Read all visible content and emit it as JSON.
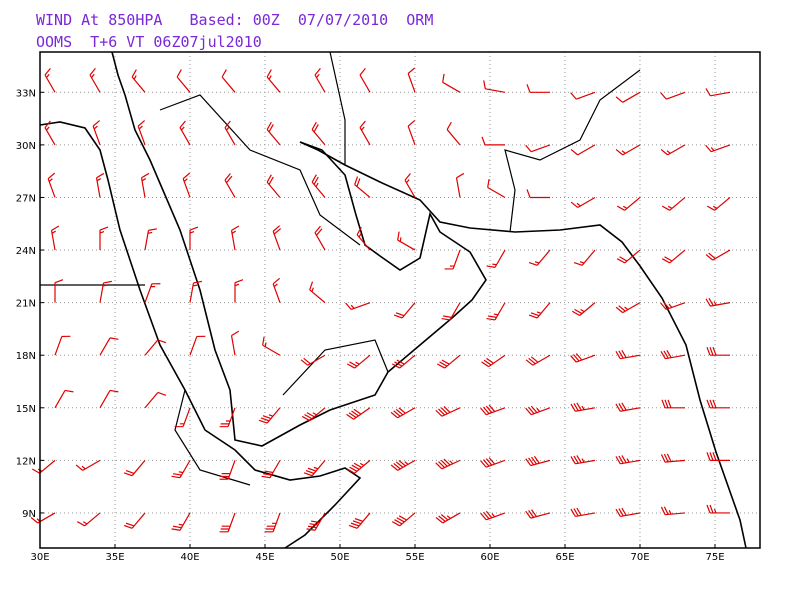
{
  "map": {
    "title_line1": "WIND At 850HPA   Based: 00Z  07/07/2010  ORM",
    "title_line2": "OOMS  T+6 VT 06Z07jul2010",
    "xlim": [
      30,
      78
    ],
    "ylim": [
      7,
      35.3
    ],
    "xticks": [
      {
        "value": 30,
        "label": "30E"
      },
      {
        "value": 35,
        "label": "35E"
      },
      {
        "value": 40,
        "label": "40E"
      },
      {
        "value": 45,
        "label": "45E"
      },
      {
        "value": 50,
        "label": "50E"
      },
      {
        "value": 55,
        "label": "55E"
      },
      {
        "value": 60,
        "label": "60E"
      },
      {
        "value": 65,
        "label": "65E"
      },
      {
        "value": 70,
        "label": "70E"
      },
      {
        "value": 75,
        "label": "75E"
      }
    ],
    "yticks": [
      {
        "value": 9,
        "label": "9N"
      },
      {
        "value": 12,
        "label": "12N"
      },
      {
        "value": 15,
        "label": "15N"
      },
      {
        "value": 18,
        "label": "18N"
      },
      {
        "value": 21,
        "label": "21N"
      },
      {
        "value": 24,
        "label": "24N"
      },
      {
        "value": 27,
        "label": "27N"
      },
      {
        "value": 30,
        "label": "30N"
      },
      {
        "value": 33,
        "label": "33N"
      }
    ],
    "grid": true,
    "barb_color": "#e00000",
    "wind": {
      "lons": [
        31,
        34,
        37,
        40,
        43,
        46,
        49,
        52,
        55,
        58,
        61,
        64,
        67,
        70,
        73,
        76
      ],
      "lats": [
        33,
        30,
        27,
        24,
        21,
        18,
        15,
        12,
        9
      ],
      "dir": [
        [
          330,
          330,
          320,
          320,
          320,
          320,
          330,
          330,
          340,
          300,
          280,
          270,
          250,
          240,
          250,
          260
        ],
        [
          330,
          340,
          340,
          330,
          330,
          320,
          320,
          330,
          340,
          320,
          270,
          250,
          240,
          240,
          240,
          250
        ],
        [
          340,
          350,
          350,
          340,
          330,
          320,
          320,
          310,
          330,
          350,
          300,
          270,
          240,
          230,
          230,
          230
        ],
        [
          350,
          360,
          10,
          360,
          350,
          340,
          330,
          320,
          300,
          200,
          210,
          220,
          220,
          230,
          230,
          240
        ],
        [
          360,
          10,
          20,
          10,
          360,
          340,
          310,
          250,
          220,
          210,
          210,
          220,
          230,
          240,
          250,
          260
        ],
        [
          20,
          30,
          40,
          20,
          350,
          300,
          240,
          230,
          230,
          230,
          235,
          240,
          250,
          260,
          260,
          270
        ],
        [
          30,
          30,
          40,
          200,
          200,
          220,
          230,
          235,
          240,
          245,
          250,
          250,
          260,
          260,
          270,
          270
        ],
        [
          230,
          240,
          220,
          210,
          200,
          210,
          220,
          230,
          240,
          245,
          250,
          255,
          260,
          260,
          265,
          270
        ],
        [
          240,
          230,
          220,
          210,
          200,
          200,
          210,
          220,
          230,
          240,
          250,
          255,
          260,
          260,
          265,
          270
        ]
      ],
      "speed": [
        [
          15,
          15,
          15,
          10,
          10,
          15,
          15,
          10,
          10,
          10,
          10,
          10,
          10,
          10,
          10,
          10
        ],
        [
          15,
          15,
          15,
          15,
          15,
          20,
          20,
          15,
          10,
          10,
          10,
          10,
          10,
          15,
          15,
          15
        ],
        [
          15,
          15,
          15,
          15,
          20,
          20,
          25,
          20,
          15,
          10,
          10,
          10,
          15,
          15,
          15,
          15
        ],
        [
          15,
          15,
          15,
          15,
          15,
          20,
          20,
          15,
          15,
          15,
          15,
          15,
          15,
          20,
          20,
          20
        ],
        [
          10,
          15,
          15,
          15,
          15,
          15,
          15,
          15,
          20,
          20,
          25,
          25,
          25,
          25,
          25,
          25
        ],
        [
          10,
          10,
          10,
          10,
          10,
          15,
          20,
          25,
          30,
          30,
          30,
          30,
          30,
          30,
          30,
          30
        ],
        [
          10,
          10,
          10,
          15,
          25,
          35,
          35,
          40,
          40,
          40,
          40,
          35,
          35,
          30,
          30,
          30
        ],
        [
          15,
          15,
          20,
          25,
          30,
          30,
          35,
          45,
          45,
          45,
          40,
          40,
          35,
          35,
          30,
          30
        ],
        [
          15,
          15,
          20,
          25,
          30,
          35,
          40,
          40,
          40,
          35,
          35,
          30,
          30,
          30,
          25,
          25
        ]
      ]
    }
  }
}
